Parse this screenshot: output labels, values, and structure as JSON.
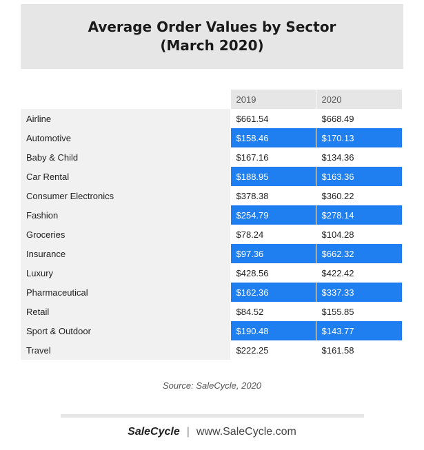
{
  "chart_data": {
    "type": "table",
    "title": [
      "Average Order Values by Sector",
      "(March 2020)"
    ],
    "columns": [
      "2019",
      "2020"
    ],
    "rows": [
      {
        "sector": "Airline",
        "values": [
          "$661.54",
          "$668.49"
        ]
      },
      {
        "sector": "Automotive",
        "values": [
          "$158.46",
          "$170.13"
        ]
      },
      {
        "sector": "Baby & Child",
        "values": [
          "$167.16",
          "$134.36"
        ]
      },
      {
        "sector": "Car Rental",
        "values": [
          "$188.95",
          "$163.36"
        ]
      },
      {
        "sector": "Consumer Electronics",
        "values": [
          "$378.38",
          "$360.22"
        ]
      },
      {
        "sector": "Fashion",
        "values": [
          "$254.79",
          "$278.14"
        ]
      },
      {
        "sector": "Groceries",
        "values": [
          "$78.24",
          "$104.28"
        ]
      },
      {
        "sector": "Insurance",
        "values": [
          "$97.36",
          "$662.32"
        ]
      },
      {
        "sector": "Luxury",
        "values": [
          "$428.56",
          "$422.42"
        ]
      },
      {
        "sector": "Pharmaceutical",
        "values": [
          "$162.36",
          "$337.33"
        ]
      },
      {
        "sector": "Retail",
        "values": [
          "$84.52",
          "$155.85"
        ]
      },
      {
        "sector": "Sport & Outdoor",
        "values": [
          "$190.48",
          "$143.77"
        ]
      },
      {
        "sector": "Travel",
        "values": [
          "$222.25",
          "$161.58"
        ]
      }
    ],
    "highlight_color": "#1f7ff0"
  },
  "source": "Source: SaleCycle, 2020",
  "footer": {
    "brand": "SaleCycle",
    "url": "www.SaleCycle.com",
    "separator": "|"
  }
}
